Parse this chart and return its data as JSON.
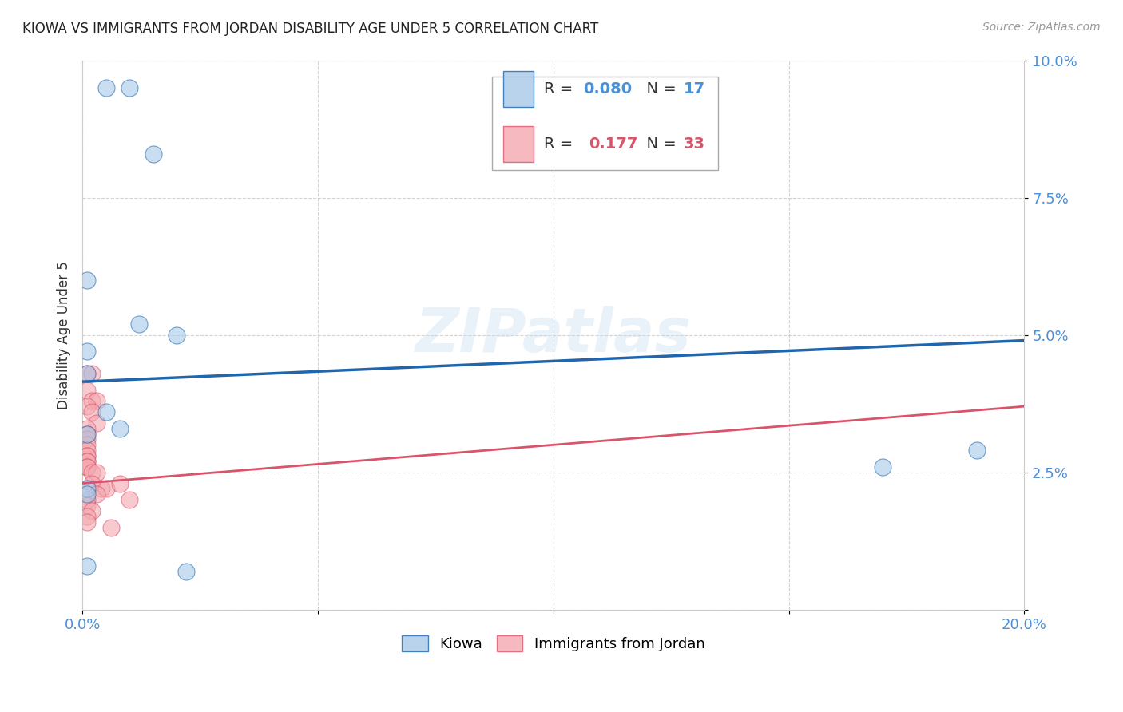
{
  "title": "KIOWA VS IMMIGRANTS FROM JORDAN DISABILITY AGE UNDER 5 CORRELATION CHART",
  "source": "Source: ZipAtlas.com",
  "ylabel": "Disability Age Under 5",
  "watermark": "ZIPatlas",
  "xlim": [
    0,
    0.2
  ],
  "ylim": [
    0,
    0.1
  ],
  "xticks": [
    0.0,
    0.05,
    0.1,
    0.15,
    0.2
  ],
  "xticklabels": [
    "0.0%",
    "",
    "",
    "",
    "20.0%"
  ],
  "yticks": [
    0.0,
    0.025,
    0.05,
    0.075,
    0.1
  ],
  "yticklabels": [
    "",
    "2.5%",
    "5.0%",
    "7.5%",
    "10.0%"
  ],
  "blue_color": "#a8c8e8",
  "pink_color": "#f4a8b0",
  "trendline_blue": "#2166ac",
  "trendline_pink": "#d9546a",
  "background": "#ffffff",
  "grid_color": "#c8c8c8",
  "kiowa_points": [
    [
      0.005,
      0.095
    ],
    [
      0.01,
      0.095
    ],
    [
      0.015,
      0.083
    ],
    [
      0.001,
      0.06
    ],
    [
      0.012,
      0.052
    ],
    [
      0.02,
      0.05
    ],
    [
      0.001,
      0.047
    ],
    [
      0.001,
      0.043
    ],
    [
      0.005,
      0.036
    ],
    [
      0.008,
      0.033
    ],
    [
      0.001,
      0.032
    ],
    [
      0.001,
      0.022
    ],
    [
      0.001,
      0.021
    ],
    [
      0.17,
      0.026
    ],
    [
      0.19,
      0.029
    ],
    [
      0.001,
      0.008
    ],
    [
      0.022,
      0.007
    ]
  ],
  "jordan_points": [
    [
      0.001,
      0.043
    ],
    [
      0.002,
      0.043
    ],
    [
      0.001,
      0.04
    ],
    [
      0.002,
      0.038
    ],
    [
      0.003,
      0.038
    ],
    [
      0.001,
      0.037
    ],
    [
      0.002,
      0.036
    ],
    [
      0.003,
      0.034
    ],
    [
      0.001,
      0.033
    ],
    [
      0.001,
      0.032
    ],
    [
      0.001,
      0.031
    ],
    [
      0.001,
      0.03
    ],
    [
      0.001,
      0.029
    ],
    [
      0.001,
      0.028
    ],
    [
      0.001,
      0.028
    ],
    [
      0.001,
      0.027
    ],
    [
      0.001,
      0.027
    ],
    [
      0.001,
      0.026
    ],
    [
      0.001,
      0.026
    ],
    [
      0.002,
      0.025
    ],
    [
      0.003,
      0.025
    ],
    [
      0.002,
      0.023
    ],
    [
      0.004,
      0.022
    ],
    [
      0.005,
      0.022
    ],
    [
      0.003,
      0.021
    ],
    [
      0.001,
      0.02
    ],
    [
      0.001,
      0.019
    ],
    [
      0.002,
      0.018
    ],
    [
      0.001,
      0.017
    ],
    [
      0.001,
      0.016
    ],
    [
      0.006,
      0.015
    ],
    [
      0.008,
      0.023
    ],
    [
      0.01,
      0.02
    ]
  ],
  "blue_trend_x": [
    0.0,
    0.2
  ],
  "blue_trend_y": [
    0.0415,
    0.049
  ],
  "pink_trend_x": [
    0.0,
    0.2
  ],
  "pink_trend_y": [
    0.023,
    0.037
  ],
  "legend_r1": "0.080",
  "legend_n1": "17",
  "legend_r2": "0.177",
  "legend_n2": "33",
  "legend_color_r": "#4a90d9",
  "legend_color_r2": "#d9546a",
  "legend_text_color": "#333333"
}
